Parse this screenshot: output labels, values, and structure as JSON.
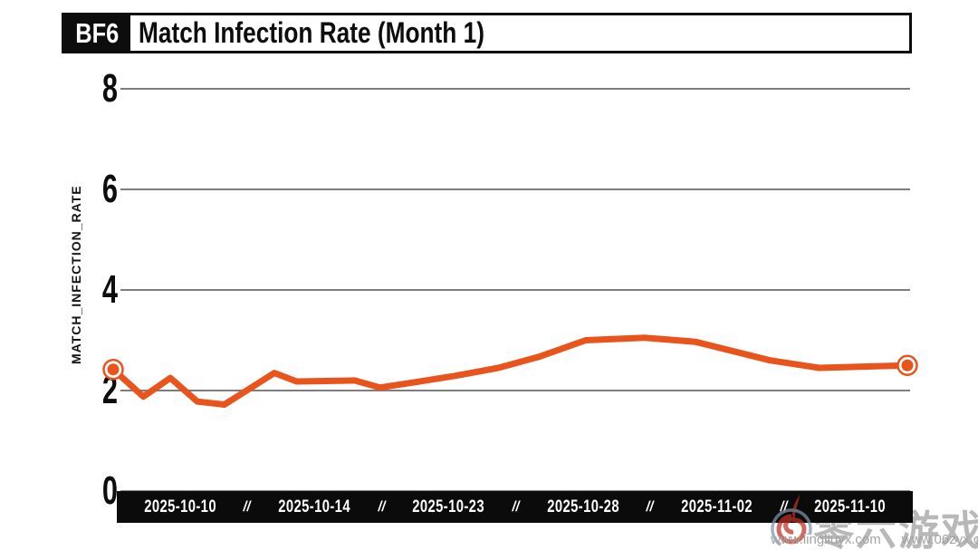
{
  "header": {
    "badge": "BF6",
    "title": "Match Infection Rate (Month 1)"
  },
  "colors": {
    "line": "#e8541c",
    "grid": "#7e7e7e",
    "axis_text": "#0d0d0d",
    "bar_bg": "#0b0b0b",
    "bar_text": "#ffffff",
    "watermark_text": "#b8b8b8",
    "watermark_url": "#a3a3a3",
    "logo_red": "#c03024",
    "logo_blue": "#7d96ab"
  },
  "chart_data": {
    "type": "line",
    "title": "Match Infection Rate (Month 1)",
    "xlabel": "",
    "ylabel": "MATCH_INFECTION_RATE",
    "ylim": [
      0,
      8.6
    ],
    "y_ticks": [
      0,
      2,
      4,
      6,
      8
    ],
    "x_tick_labels": [
      "2025-10-10",
      "2025-10-14",
      "2025-10-23",
      "2025-10-28",
      "2025-11-02",
      "2025-11-10"
    ],
    "x_tick_separator": "//",
    "grid": "horizontal-only",
    "legend": "none",
    "series": [
      {
        "name": "MATCH_INFECTION_RATE",
        "color": "#e8541c",
        "markers": "first-and-last",
        "points": [
          {
            "x": 0.0,
            "y": 2.42
          },
          {
            "x": 0.038,
            "y": 1.88
          },
          {
            "x": 0.072,
            "y": 2.25
          },
          {
            "x": 0.106,
            "y": 1.78
          },
          {
            "x": 0.14,
            "y": 1.72
          },
          {
            "x": 0.203,
            "y": 2.35
          },
          {
            "x": 0.231,
            "y": 2.18
          },
          {
            "x": 0.304,
            "y": 2.2
          },
          {
            "x": 0.336,
            "y": 2.06
          },
          {
            "x": 0.382,
            "y": 2.17
          },
          {
            "x": 0.433,
            "y": 2.3
          },
          {
            "x": 0.485,
            "y": 2.45
          },
          {
            "x": 0.536,
            "y": 2.67
          },
          {
            "x": 0.595,
            "y": 3.0
          },
          {
            "x": 0.669,
            "y": 3.05
          },
          {
            "x": 0.733,
            "y": 2.97
          },
          {
            "x": 0.827,
            "y": 2.6
          },
          {
            "x": 0.889,
            "y": 2.45
          },
          {
            "x": 1.0,
            "y": 2.5
          }
        ]
      }
    ]
  },
  "watermark": {
    "site_name": "零六游戏",
    "urls": [
      "www.lingliuyx.com",
      "www.06zyx.com"
    ]
  }
}
